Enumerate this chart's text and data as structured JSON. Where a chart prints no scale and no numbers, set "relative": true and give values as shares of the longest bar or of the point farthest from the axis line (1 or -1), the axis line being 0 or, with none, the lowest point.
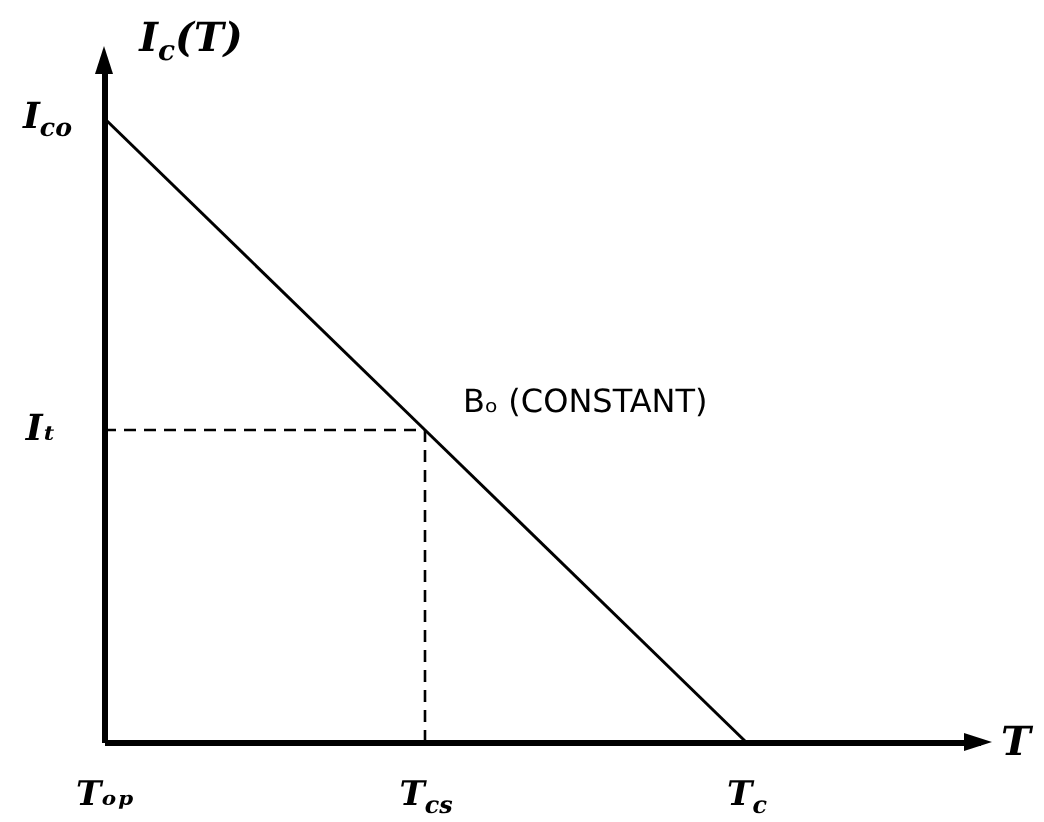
{
  "chart_data": {
    "type": "line",
    "relative": true,
    "xlabel": "T",
    "ylabel": "I$_{c}$(T)",
    "categories": [
      "Tₒₚ",
      "T$_{cs}$",
      "T$_{c}$"
    ],
    "series": [
      {
        "color": "#000000",
        "values": [
          1,
          0.5,
          0
        ]
      }
    ],
    "ref_lines": [
      {
        "axis": "y",
        "value": 0.5,
        "label": "Iₜ",
        "color": "#000000",
        "line_style": "dashed"
      },
      {
        "axis": "x",
        "value": "T$_{cs}$",
        "color": "#000000",
        "line_style": "dashed"
      }
    ],
    "annotations": [
      {
        "text": "I$_{co}$",
        "x": "Tₒₚ",
        "y": 1
      },
      {
        "text": "Bₒ (CONSTANT)",
        "x": "T$_{cs}$",
        "y": 0.5
      }
    ],
    "grid": false,
    "line_style": "solid"
  }
}
